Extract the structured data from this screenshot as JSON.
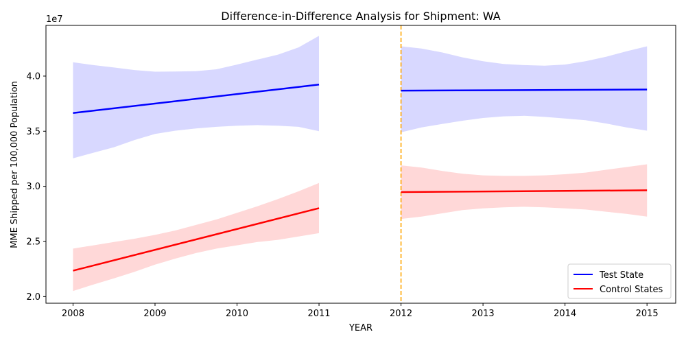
{
  "chart_data": {
    "type": "line",
    "title": "Difference-in-Difference Analysis for Shipment: WA",
    "xlabel": "YEAR",
    "ylabel": "MME Shipped per 100,000 Population",
    "y_offset_label": "1e7",
    "xlim": [
      2007.67,
      2015.35
    ],
    "ylim": [
      19400000,
      44600000
    ],
    "x_ticks": [
      2008,
      2009,
      2010,
      2011,
      2012,
      2013,
      2014,
      2015
    ],
    "x_tick_labels": [
      "2008",
      "2009",
      "2010",
      "2011",
      "2012",
      "2013",
      "2014",
      "2015"
    ],
    "y_ticks": [
      20000000,
      25000000,
      30000000,
      35000000,
      40000000
    ],
    "y_tick_labels": [
      "2.0",
      "2.5",
      "3.0",
      "3.5",
      "4.0"
    ],
    "intervention_x": 2012,
    "intervention_color": "#FFA500",
    "legend_position": "lower-right",
    "series": [
      {
        "name": "Test State",
        "color": "#0000FF",
        "band_color": "#D8D8FF",
        "segments": [
          {
            "x": [
              2008,
              2011
            ],
            "y": [
              36650000,
              39230000
            ],
            "band": {
              "x": [
                2008,
                2008.25,
                2008.5,
                2008.75,
                2009,
                2009.25,
                2009.5,
                2009.75,
                2010,
                2010.25,
                2010.5,
                2010.75,
                2011
              ],
              "upper": [
                41250000,
                41000000,
                40780000,
                40550000,
                40400000,
                40420000,
                40450000,
                40620000,
                41050000,
                41500000,
                41950000,
                42600000,
                43650000
              ],
              "lower": [
                32550000,
                33050000,
                33550000,
                34200000,
                34750000,
                35050000,
                35250000,
                35400000,
                35500000,
                35550000,
                35500000,
                35400000,
                35000000
              ]
            }
          },
          {
            "x": [
              2012,
              2015
            ],
            "y": [
              38680000,
              38780000
            ],
            "band": {
              "x": [
                2012,
                2012.25,
                2012.5,
                2012.75,
                2013,
                2013.25,
                2013.5,
                2013.75,
                2014,
                2014.25,
                2014.5,
                2014.75,
                2015
              ],
              "upper": [
                42700000,
                42500000,
                42150000,
                41700000,
                41350000,
                41100000,
                41000000,
                40950000,
                41050000,
                41350000,
                41750000,
                42250000,
                42700000
              ],
              "lower": [
                34900000,
                35350000,
                35650000,
                35950000,
                36200000,
                36350000,
                36400000,
                36300000,
                36150000,
                36000000,
                35700000,
                35350000,
                35050000
              ]
            }
          }
        ]
      },
      {
        "name": "Control States",
        "color": "#FF0000",
        "band_color": "#FFD8D8",
        "segments": [
          {
            "x": [
              2008,
              2011
            ],
            "y": [
              22350000,
              28020000
            ],
            "band": {
              "x": [
                2008,
                2008.25,
                2008.5,
                2008.75,
                2009,
                2009.25,
                2009.5,
                2009.75,
                2010,
                2010.25,
                2010.5,
                2010.75,
                2011
              ],
              "upper": [
                24350000,
                24650000,
                24950000,
                25250000,
                25600000,
                26000000,
                26500000,
                27000000,
                27600000,
                28200000,
                28850000,
                29550000,
                30300000
              ],
              "lower": [
                20500000,
                21100000,
                21650000,
                22250000,
                22900000,
                23450000,
                23950000,
                24350000,
                24650000,
                24950000,
                25150000,
                25450000,
                25750000
              ]
            }
          },
          {
            "x": [
              2012,
              2015
            ],
            "y": [
              29480000,
              29640000
            ],
            "band": {
              "x": [
                2012,
                2012.25,
                2012.5,
                2012.75,
                2013,
                2013.25,
                2013.5,
                2013.75,
                2014,
                2014.25,
                2014.5,
                2014.75,
                2015
              ],
              "upper": [
                31900000,
                31700000,
                31400000,
                31150000,
                31000000,
                30950000,
                30950000,
                31000000,
                31100000,
                31250000,
                31500000,
                31750000,
                32000000
              ],
              "lower": [
                27050000,
                27250000,
                27550000,
                27850000,
                28000000,
                28100000,
                28150000,
                28100000,
                28000000,
                27900000,
                27700000,
                27500000,
                27250000
              ]
            }
          }
        ]
      }
    ]
  }
}
